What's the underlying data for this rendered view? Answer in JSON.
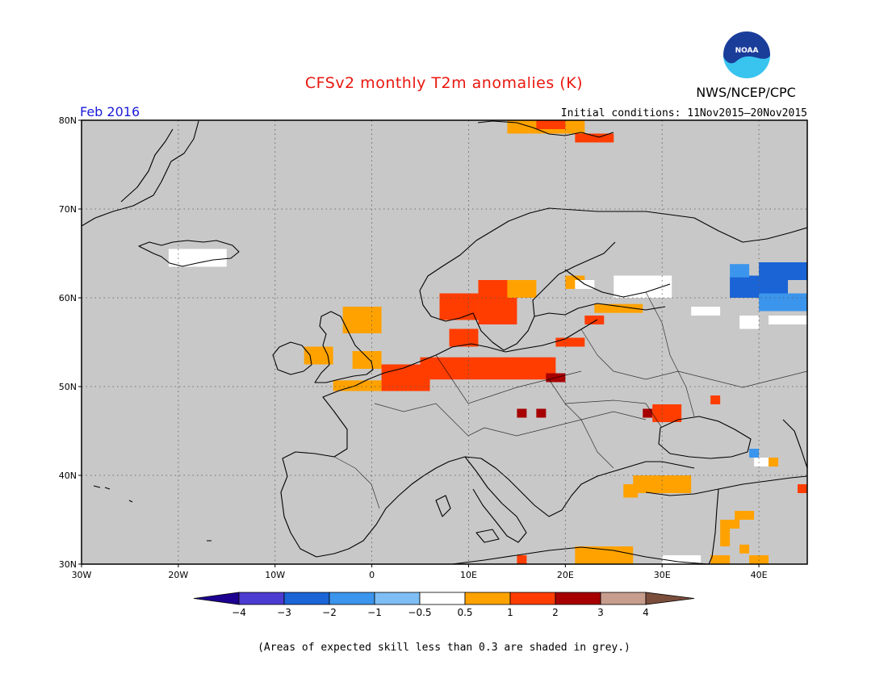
{
  "header": {
    "title": "CFSv2 monthly T2m anomalies (K)",
    "organization": "NWS/NCEP/CPC",
    "logo_text": "NOAA",
    "valid_month": "Feb 2016",
    "initial_conditions": "Initial conditions: 11Nov2015–20Nov2015"
  },
  "map": {
    "region": "Europe",
    "lon_range": [
      -30,
      45
    ],
    "lat_range": [
      30,
      80
    ],
    "x_ticks": [
      "30W",
      "20W",
      "10W",
      "0",
      "10E",
      "20E",
      "30E",
      "40E"
    ],
    "y_ticks": [
      "30N",
      "40N",
      "50N",
      "60N",
      "70N",
      "80N"
    ],
    "grid_lon": [
      -20,
      -10,
      0,
      10,
      20,
      30,
      40
    ],
    "grid_lat": [
      40,
      50,
      60,
      70
    ],
    "background_color": "#c8c8c8",
    "anomaly_cells": [
      {
        "lon": -3,
        "lat": 56,
        "w": 4,
        "h": 3,
        "cls": 1
      },
      {
        "lon": -7,
        "lat": 52.5,
        "w": 3,
        "h": 2,
        "cls": 1
      },
      {
        "lon": -2,
        "lat": 52,
        "w": 3,
        "h": 2,
        "cls": 1
      },
      {
        "lon": -4,
        "lat": 49.5,
        "w": 5,
        "h": 1.2,
        "cls": 1
      },
      {
        "lon": 1,
        "lat": 49.5,
        "w": 5,
        "h": 3,
        "cls": 2
      },
      {
        "lon": 5,
        "lat": 50.8,
        "w": 14,
        "h": 2.5,
        "cls": 2
      },
      {
        "lon": 7,
        "lat": 57.5,
        "w": 4,
        "h": 3,
        "cls": 2
      },
      {
        "lon": 11,
        "lat": 57,
        "w": 4,
        "h": 5,
        "cls": 2
      },
      {
        "lon": 8,
        "lat": 54.5,
        "w": 3,
        "h": 2,
        "cls": 2
      },
      {
        "lon": 14,
        "lat": 60,
        "w": 3,
        "h": 2,
        "cls": 1
      },
      {
        "lon": 19,
        "lat": 54.5,
        "w": 3,
        "h": 1,
        "cls": 2
      },
      {
        "lon": 18,
        "lat": 50.5,
        "w": 2,
        "h": 1,
        "cls": 3
      },
      {
        "lon": 20,
        "lat": 61,
        "w": 2,
        "h": 1.5,
        "cls": 1
      },
      {
        "lon": 23,
        "lat": 58.3,
        "w": 5,
        "h": 1,
        "cls": 1
      },
      {
        "lon": 22,
        "lat": 57,
        "w": 2,
        "h": 1,
        "cls": 2
      },
      {
        "lon": 21,
        "lat": 61,
        "w": 2,
        "h": 1,
        "cls": 0
      },
      {
        "lon": 25,
        "lat": 60,
        "w": 6,
        "h": 2.5,
        "cls": 0
      },
      {
        "lon": 15,
        "lat": 46.5,
        "w": 1,
        "h": 1,
        "cls": 3
      },
      {
        "lon": 17,
        "lat": 46.5,
        "w": 1,
        "h": 1,
        "cls": 3
      },
      {
        "lon": 28,
        "lat": 46.5,
        "w": 1,
        "h": 1,
        "cls": 3
      },
      {
        "lon": 29,
        "lat": 46,
        "w": 3,
        "h": 2,
        "cls": 2
      },
      {
        "lon": 35,
        "lat": 48,
        "w": 1,
        "h": 1,
        "cls": 2
      },
      {
        "lon": 27,
        "lat": 38,
        "w": 6,
        "h": 2,
        "cls": 1
      },
      {
        "lon": 26,
        "lat": 37.5,
        "w": 1.5,
        "h": 1.5,
        "cls": 1
      },
      {
        "lon": 36,
        "lat": 34,
        "w": 2,
        "h": 1,
        "cls": 1
      },
      {
        "lon": 36,
        "lat": 32,
        "w": 1,
        "h": 2,
        "cls": 1
      },
      {
        "lon": 38,
        "lat": 31.2,
        "w": 1,
        "h": 1,
        "cls": 1
      },
      {
        "lon": 37.5,
        "lat": 35,
        "w": 2,
        "h": 1,
        "cls": 1
      },
      {
        "lon": 21,
        "lat": 30,
        "w": 6,
        "h": 2,
        "cls": 1
      },
      {
        "lon": 35,
        "lat": 30,
        "w": 2,
        "h": 1,
        "cls": 1
      },
      {
        "lon": 39,
        "lat": 30,
        "w": 2,
        "h": 1,
        "cls": 1
      },
      {
        "lon": 15,
        "lat": 30,
        "w": 1,
        "h": 1,
        "cls": 2
      },
      {
        "lon": 30,
        "lat": 30,
        "w": 4,
        "h": 1,
        "cls": 0
      },
      {
        "lon": 14,
        "lat": 78.5,
        "w": 8,
        "h": 2,
        "cls": 1
      },
      {
        "lon": 21,
        "lat": 77.5,
        "w": 4,
        "h": 1,
        "cls": 2
      },
      {
        "lon": 17,
        "lat": 79,
        "w": 3,
        "h": 1,
        "cls": 2
      },
      {
        "lon": -21,
        "lat": 63.5,
        "w": 6,
        "h": 2,
        "cls": 0
      },
      {
        "lon": 37,
        "lat": 60,
        "w": 6,
        "h": 2.5,
        "cls": -3
      },
      {
        "lon": 40,
        "lat": 58.5,
        "w": 5,
        "h": 2,
        "cls": -2
      },
      {
        "lon": 41,
        "lat": 57,
        "w": 4,
        "h": 1,
        "cls": 0
      },
      {
        "lon": 33,
        "lat": 58,
        "w": 3,
        "h": 1,
        "cls": 0
      },
      {
        "lon": 38,
        "lat": 56.5,
        "w": 2,
        "h": 1.5,
        "cls": 0
      },
      {
        "lon": 40,
        "lat": 62,
        "w": 5,
        "h": 2,
        "cls": -3
      },
      {
        "lon": 37,
        "lat": 62.3,
        "w": 2,
        "h": 1.5,
        "cls": -2
      },
      {
        "lon": 39,
        "lat": 42,
        "w": 1,
        "h": 1,
        "cls": -2
      },
      {
        "lon": 39.5,
        "lat": 41,
        "w": 1.5,
        "h": 1,
        "cls": 0
      },
      {
        "lon": 41,
        "lat": 41,
        "w": 1,
        "h": 1,
        "cls": 1
      },
      {
        "lon": 44,
        "lat": 38,
        "w": 1,
        "h": 1,
        "cls": 2
      }
    ]
  },
  "legend": {
    "tick_labels": [
      "−4",
      "−3",
      "−2",
      "−1",
      "−0.5",
      "0.5",
      "1",
      "2",
      "3",
      "4"
    ],
    "colors": [
      "#1e0091",
      "#4b3bd0",
      "#1a64d6",
      "#3c95ec",
      "#7ebef5",
      "#ffffff",
      "#ffa200",
      "#ff3d00",
      "#a60000",
      "#c79d8d",
      "#7b4e3c"
    ]
  },
  "footnote": "(Areas of expected skill less than 0.3 are shaded in grey.)"
}
